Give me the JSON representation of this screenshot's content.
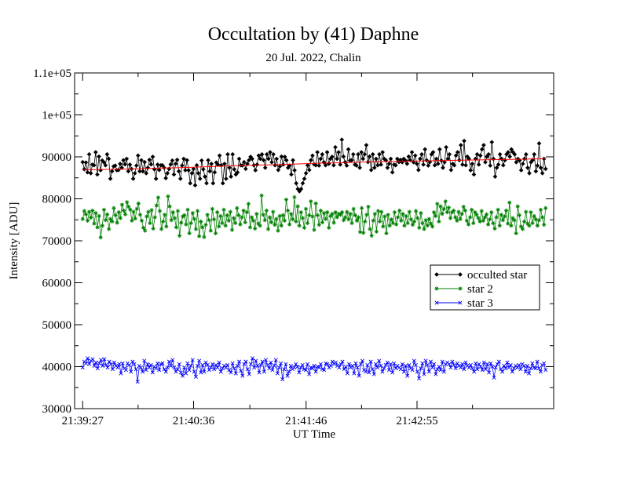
{
  "chart_data": {
    "type": "line",
    "title": "Occultation by (41) Daphne",
    "subtitle": "20 Jul. 2022, Chalin",
    "xlabel": "UT Time",
    "ylabel": "Intensity [ADU]",
    "xlim": [
      "21:39:22",
      "21:44:20"
    ],
    "ylim": [
      30000,
      110000
    ],
    "x_ticks": [
      "21:39:27",
      "21:40:36",
      "21:41:46",
      "21:42:55"
    ],
    "y_ticks": [
      "30000",
      "40000",
      "50000",
      "60000",
      "70000",
      "80000",
      "90000",
      "1e+05",
      "1.1e+05"
    ],
    "y_tick_values": [
      30000,
      40000,
      50000,
      60000,
      70000,
      80000,
      90000,
      100000,
      110000
    ],
    "legend_position": "right-middle",
    "x_start": "21:39:27",
    "x_end": "21:44:15",
    "num_points": 270,
    "series": [
      {
        "name": "occulted star",
        "color": "#000000",
        "marker": "diamond",
        "values": [
          88758,
          87037,
          88658,
          86312,
          90608,
          86096,
          88159,
          87993,
          91112,
          85801,
          90069,
          86806,
          89132,
          88719,
          87993,
          90608,
          89532,
          84785,
          86559,
          87745,
          87930,
          86806,
          86861,
          88347,
          87401,
          89200,
          88211,
          89532,
          86559,
          88158,
          87132,
          84785,
          86096,
          87930,
          90310,
          86559,
          89200,
          86559,
          88758,
          86096,
          87401,
          89301,
          88211,
          90015,
          87030,
          84785,
          88159,
          86866,
          87993,
          87993,
          87401,
          84920,
          86096,
          87132,
          88211,
          89132,
          85801,
          88347,
          89300,
          86559,
          84785,
          87930,
          89532,
          86806,
          89200,
          86806,
          83712,
          86096,
          87132,
          83224,
          87993,
          86096,
          84785,
          89132,
          87030,
          85300,
          83712,
          89200,
          86559,
          88347,
          83712,
          86312,
          88658,
          88159,
          90310,
          87993,
          83712,
          88347,
          84785,
          90608,
          87401,
          85300,
          90608,
          87030,
          85801,
          86312,
          89532,
          87993,
          87930,
          88758,
          87132,
          88347,
          89200,
          90015,
          89532,
          87993,
          86806,
          88158,
          90310,
          89532,
          90608,
          89200,
          87401,
          90608,
          89532,
          91112,
          88719,
          90608,
          87993,
          89532,
          86866,
          87745,
          90069,
          88159,
          90015,
          89200,
          87401,
          87930,
          85801,
          89200,
          86806,
          83712,
          82345,
          81800,
          82345,
          83712,
          84785,
          86096,
          87993,
          86866,
          89200,
          90310,
          88211,
          87993,
          91112,
          87930,
          89532,
          90608,
          88719,
          87993,
          91112,
          88347,
          89532,
          90015,
          87993,
          92300,
          89532,
          91112,
          88159,
          94100,
          90069,
          88719,
          87930,
          91800,
          89132,
          89200,
          90608,
          88158,
          87930,
          90608,
          87401,
          91112,
          89532,
          90608,
          92800,
          88758,
          90069,
          86866,
          90608,
          87401,
          89532,
          87993,
          90608,
          88159,
          91112,
          89532,
          89200,
          87401,
          88347,
          89532,
          86312,
          88158,
          87993,
          89532,
          88758,
          89300,
          88719,
          89532,
          89132,
          88347,
          90069,
          89200,
          91112,
          88719,
          90310,
          88347,
          86866,
          89532,
          90608,
          88159,
          91800,
          89200,
          87930,
          88758,
          90608,
          91112,
          87993,
          89532,
          88347,
          91800,
          89132,
          87401,
          88719,
          92300,
          89532,
          90608,
          86866,
          88347,
          87993,
          90310,
          91112,
          89200,
          92800,
          88158,
          93800,
          87993,
          90069,
          89532,
          86806,
          88347,
          85801,
          89532,
          90608,
          88159,
          90310,
          91800,
          92800,
          88719,
          90069,
          90608,
          87930,
          93500,
          89532,
          85300,
          87401,
          88159,
          90608,
          89532,
          87993,
          89200,
          90608,
          91112,
          90069,
          91800,
          91112,
          90608,
          88719,
          89532,
          89132,
          86806,
          88347,
          89532,
          90608,
          87401,
          86096,
          88719,
          89200,
          90608,
          86559,
          87930,
          93200,
          87401,
          86096,
          89532,
          87132
        ]
      },
      {
        "name": "star 2",
        "color": "#008000",
        "marker": "star",
        "values": [
          75200,
          77100,
          76300,
          74800,
          76900,
          75500,
          77200,
          74100,
          76600,
          73200,
          75900,
          70800,
          73600,
          77400,
          74900,
          76300,
          72800,
          75200,
          74600,
          77800,
          76100,
          74300,
          76800,
          75400,
          78600,
          77200,
          76300,
          79200,
          78100,
          77400,
          74800,
          76900,
          75300,
          77600,
          78900,
          76200,
          74800,
          73100,
          72400,
          75800,
          76900,
          74200,
          77300,
          72900,
          75600,
          78400,
          80300,
          77100,
          72800,
          74600,
          76200,
          73400,
          80600,
          78200,
          74900,
          76800,
          75400,
          73200,
          77100,
          71200,
          74300,
          75800,
          76100,
          73900,
          77400,
          71800,
          74200,
          76600,
          75200,
          72800,
          77100,
          71100,
          74600,
          73200,
          70900,
          73800,
          76200,
          74900,
          72400,
          77600,
          75100,
          71800,
          76800,
          73400,
          75900,
          74200,
          77400,
          73600,
          76100,
          74800,
          76900,
          72600,
          75400,
          74200,
          77800,
          76100,
          73900,
          75600,
          77200,
          74400,
          76800,
          78800,
          73200,
          75600,
          74800,
          72900,
          76400,
          74100,
          73600,
          80800,
          76200,
          74900,
          77200,
          72800,
          75600,
          74400,
          76900,
          73800,
          75200,
          72400,
          75900,
          73600,
          76100,
          74800,
          79800,
          77200,
          73900,
          76400,
          75100,
          80400,
          74600,
          78200,
          73600,
          76800,
          75400,
          73100,
          77600,
          74200,
          76100,
          79400,
          75800,
          72600,
          78900,
          76100,
          73800,
          77200,
          74400,
          76600,
          75200,
          76800,
          73100,
          75900,
          76400,
          74300,
          76800,
          75600,
          76400,
          76200,
          76800,
          74900,
          75600,
          76900,
          75100,
          76400,
          74200,
          77600,
          76100,
          74800,
          75600,
          72100,
          77800,
          71900,
          74600,
          76200,
          78100,
          72800,
          71200,
          74800,
          76400,
          72200,
          77100,
          74600,
          76900,
          73400,
          75800,
          71800,
          76200,
          73600,
          75100,
          74200,
          76800,
          73900,
          75600,
          77200,
          74800,
          76400,
          73600,
          75900,
          74200,
          76900,
          75100,
          73800,
          74600,
          77100,
          75400,
          73100,
          76600,
          74200,
          72800,
          74900,
          73600,
          75200,
          74100,
          73400,
          76800,
          75900,
          78800,
          74600,
          78200,
          76400,
          77600,
          79400,
          76800,
          77900,
          75400,
          76800,
          77200,
          75600,
          74800,
          76900,
          75200,
          76400,
          78100,
          77200,
          74800,
          73900,
          75600,
          77400,
          74200,
          76800,
          76200,
          75400,
          74600,
          77100,
          74800,
          75600,
          76300,
          73900,
          75100,
          76800,
          74200,
          72900,
          75600,
          77400,
          73600,
          76200,
          74900,
          75800,
          77200,
          74100,
          79100,
          73600,
          75400,
          74900,
          71800,
          78200,
          76100,
          73400,
          72800,
          74600,
          76900,
          74100,
          73600,
          76800,
          74200,
          75900,
          75100,
          73600,
          74900,
          77400,
          75600,
          73800,
          77800
        ]
      },
      {
        "name": "star 3",
        "color": "#0000ff",
        "marker": "x",
        "values": [
          39800,
          41200,
          40800,
          42000,
          40600,
          41400,
          41800,
          40200,
          41000,
          39600,
          40800,
          41600,
          40200,
          41800,
          40400,
          39800,
          41200,
          40600,
          39400,
          41000,
          40200,
          39800,
          40600,
          38400,
          40800,
          39600,
          39200,
          40800,
          40400,
          38800,
          41200,
          40600,
          39400,
          36400,
          40200,
          39800,
          38800,
          41400,
          39200,
          40600,
          39800,
          40400,
          38600,
          40000,
          39600,
          40800,
          39200,
          40600,
          40800,
          39400,
          38800,
          39800,
          41200,
          40200,
          41600,
          39800,
          38800,
          39400,
          40600,
          38600,
          37800,
          39800,
          38400,
          40800,
          39200,
          40200,
          41600,
          38800,
          37600,
          40200,
          41400,
          38600,
          40400,
          38800,
          41000,
          40400,
          39200,
          39800,
          40600,
          39400,
          40400,
          39800,
          41000,
          38800,
          39600,
          40200,
          39800,
          40400,
          39200,
          38600,
          40800,
          39600,
          38400,
          40200,
          41200,
          39000,
          37800,
          40600,
          41200,
          39400,
          38200,
          40600,
          42000,
          39800,
          41400,
          40200,
          38600,
          40400,
          41200,
          38800,
          41600,
          40400,
          39600,
          41000,
          39200,
          40200,
          41600,
          38400,
          39800,
          40800,
          37000,
          39400,
          40600,
          37800,
          38800,
          40200,
          39400,
          39800,
          40600,
          40000,
          38600,
          39800,
          40400,
          39400,
          39200,
          40600,
          38200,
          39800,
          39600,
          40200,
          38800,
          40000,
          39800,
          40600,
          39400,
          39200,
          40800,
          40600,
          39800,
          40200,
          41200,
          40600,
          41000,
          40200,
          39800,
          40600,
          41200,
          39400,
          40000,
          38400,
          40600,
          39800,
          40200,
          38400,
          40800,
          39800,
          37800,
          40600,
          41400,
          39200,
          38800,
          40400,
          38600,
          41200,
          39400,
          38200,
          40600,
          39800,
          41400,
          40200,
          38800,
          39600,
          40400,
          41000,
          39200,
          40600,
          38600,
          40800,
          39600,
          40200,
          39800,
          39400,
          40600,
          38800,
          40200,
          37800,
          40400,
          39600,
          39200,
          41400,
          40400,
          38800,
          37200,
          39600,
          40800,
          38200,
          41400,
          40400,
          38800,
          41200,
          39800,
          40600,
          38200,
          39400,
          40000,
          39200,
          41200,
          38800,
          40600,
          41000,
          40600,
          39800,
          41200,
          40400,
          39600,
          40800,
          40200,
          39800,
          40600,
          39400,
          41000,
          40200,
          39800,
          40400,
          39600,
          38800,
          40800,
          39400,
          40600,
          40000,
          39200,
          41000,
          39400,
          40600,
          38600,
          40800,
          40000,
          37400,
          39800,
          40600,
          41200,
          39400,
          38800,
          40200,
          39600,
          41000,
          39800,
          40400,
          38800,
          39600,
          40200,
          39800,
          40400,
          39400,
          40600,
          40200,
          38800,
          40200,
          38400,
          39600,
          40800,
          39800,
          39600,
          41200,
          39600,
          38800,
          40400,
          40800,
          39200
        ]
      },
      {
        "name": "",
        "color": "#ff0000",
        "marker": "none",
        "values": [
          86900,
          86950,
          87000,
          87050,
          87100,
          87200,
          87300,
          87350,
          87400,
          87500,
          87600,
          87700,
          87800,
          87900,
          88000,
          88050,
          88100,
          88200,
          88300,
          88400,
          88500,
          88550,
          88600,
          88700,
          88800,
          88850,
          88900,
          88950,
          89000,
          89050,
          89100,
          89150,
          89200,
          89250,
          89300,
          89350,
          89400,
          89450,
          89500,
          89550
        ]
      }
    ]
  }
}
